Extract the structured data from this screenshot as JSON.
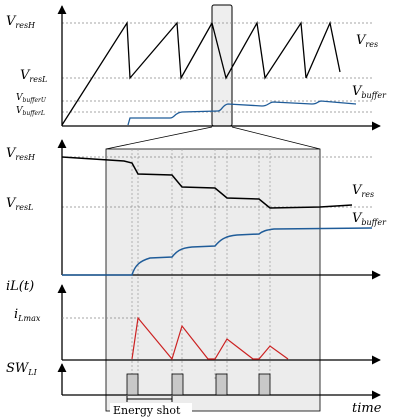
{
  "labels": {
    "vresh_main": "V",
    "vresh_sub": "resH",
    "vresl_main": "V",
    "vresl_sub": "resL",
    "vbufu_main": "V",
    "vbufu_sub": "bufferU",
    "vbufl_main": "V",
    "vbufl_sub": "bufferL",
    "vres_curve_main": "V",
    "vres_curve_sub": "res",
    "vbuffer_curve_main": "V",
    "vbuffer_curve_sub": "buffer",
    "il_t": "iL(t)",
    "ilmax_main": "i",
    "ilmax_sub": "Lmax",
    "swli_main": "SW",
    "swli_sub": "LI",
    "energy_shot": "Energy shot",
    "time": "time"
  },
  "colors": {
    "axis": "#000000",
    "buffer_curve": "#1f5c99",
    "current_curve": "#cc2222",
    "zoom_panel": "#ececec",
    "pulse": "#c8c8c8"
  }
}
